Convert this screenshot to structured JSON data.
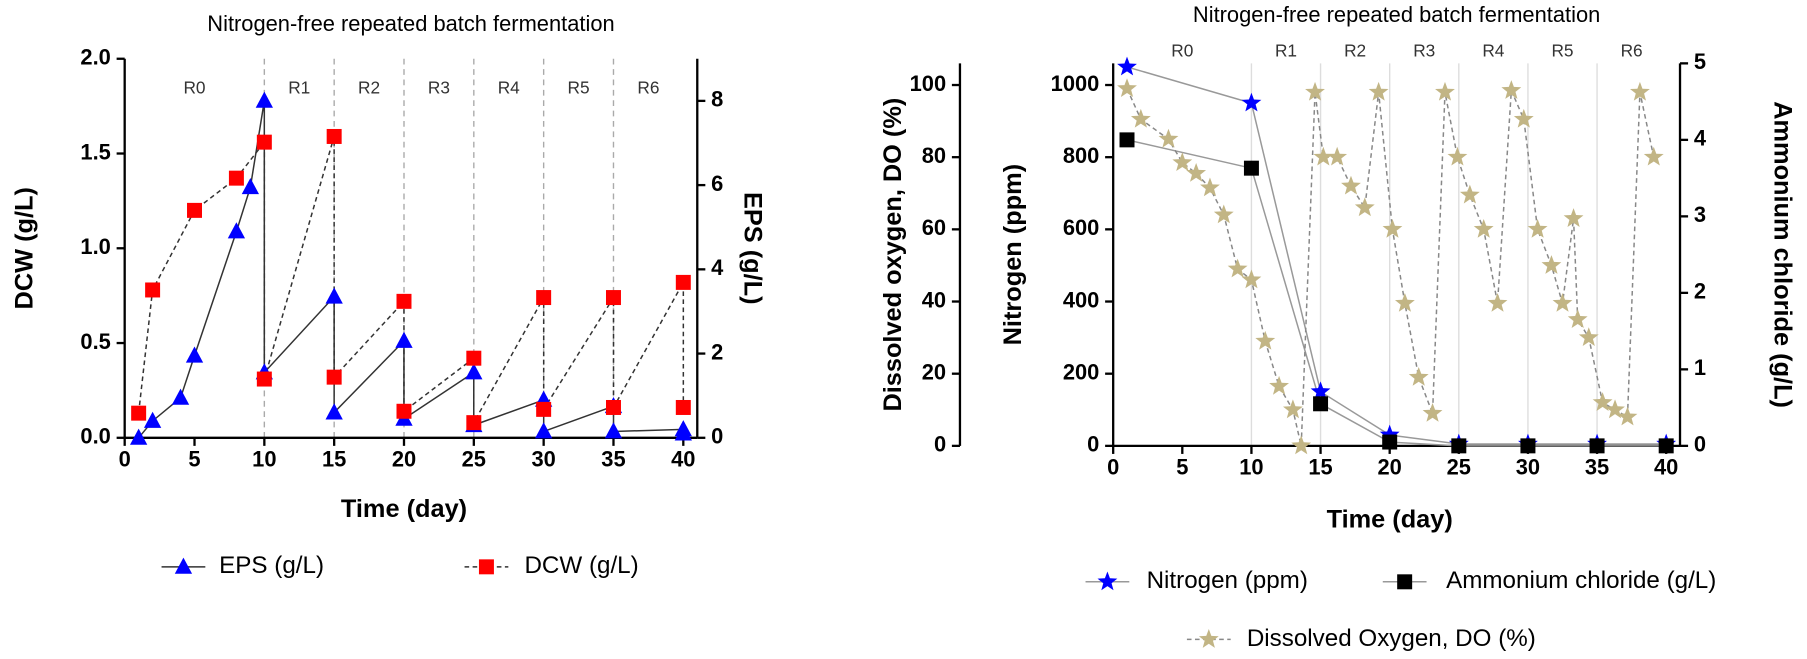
{
  "chart_data": [
    {
      "type": "line",
      "title": "Nitrogen-free repeated batch fermentation",
      "xlabel": "Time (day)",
      "ylabel": "DCW (g/L)",
      "y2label": "EPS (g/L)",
      "xlim": [
        0,
        41
      ],
      "xticks": [
        0,
        5,
        10,
        15,
        20,
        25,
        30,
        35,
        40
      ],
      "ylim": [
        0,
        2
      ],
      "yticks": [
        {
          "value": 0,
          "label": "0.0"
        },
        0.5,
        {
          "value": 1,
          "label": "1.0"
        },
        1.5,
        {
          "value": 2,
          "label": "2.0"
        }
      ],
      "y2lim": [
        0,
        9
      ],
      "y2ticks": [
        0,
        2,
        4,
        6,
        8
      ],
      "phases": [
        "R0",
        "R1",
        "R2",
        "R3",
        "R4",
        "R5",
        "R6"
      ],
      "phase_boundaries": [
        10,
        15,
        20,
        25,
        30,
        35
      ],
      "series": [
        {
          "name": "EPS (g/L)",
          "color": "#0000ff",
          "line_color": "#333333",
          "marker": "triangle",
          "dashed": false,
          "axis": "y2",
          "x": [
            1,
            2,
            4,
            5,
            8,
            9,
            10,
            10,
            15,
            15,
            20,
            20,
            25,
            25,
            30,
            30,
            35,
            35,
            40,
            40
          ],
          "values": [
            0,
            0.4,
            0.95,
            1.95,
            4.9,
            5.95,
            8,
            1.55,
            3.35,
            0.6,
            2.3,
            0.45,
            1.55,
            0.3,
            0.9,
            0.15,
            0.75,
            0.15,
            0.2,
            0.1
          ]
        },
        {
          "name": "DCW (g/L)",
          "color": "#ff0000",
          "line_color": "#333333",
          "marker": "square",
          "dashed": true,
          "axis": "y",
          "x": [
            1,
            2,
            5,
            8,
            10,
            10,
            15,
            15,
            20,
            20,
            25,
            25,
            30,
            30,
            35,
            35,
            40,
            40
          ],
          "values": [
            0.13,
            0.78,
            1.2,
            1.37,
            1.56,
            0.31,
            1.59,
            0.32,
            0.72,
            0.14,
            0.42,
            0.08,
            0.74,
            0.15,
            0.74,
            0.16,
            0.82,
            0.16
          ]
        }
      ]
    },
    {
      "type": "line",
      "title": "Nitrogen-free repeated batch fermentation",
      "xlabel": "Time (day)",
      "ylabel": "Nitrogen (ppm)",
      "y2label": "Ammonium chloride (g/L)",
      "y3label": "Dissolved oxygen, DO (%)",
      "xlim": [
        0,
        41
      ],
      "xticks": [
        0,
        5,
        10,
        15,
        20,
        25,
        30,
        35,
        40
      ],
      "ylim": [
        0,
        1060
      ],
      "yticks": [
        0,
        200,
        400,
        600,
        800,
        1000
      ],
      "y2lim": [
        0,
        5
      ],
      "y2ticks": [
        0,
        1,
        2,
        3,
        4,
        5
      ],
      "y3lim": [
        0,
        106
      ],
      "y3ticks": [
        0,
        20,
        40,
        60,
        80,
        100
      ],
      "phases": [
        "R0",
        "R1",
        "R2",
        "R3",
        "R4",
        "R5",
        "R6"
      ],
      "phase_boundaries": [
        10,
        15,
        20,
        25,
        30,
        35
      ],
      "series": [
        {
          "name": "Nitrogen (ppm)",
          "color": "#0000ff",
          "line_color": "#999999",
          "marker": "star",
          "dashed": false,
          "axis": "y",
          "x": [
            1,
            10,
            15,
            20,
            25,
            30,
            35,
            40
          ],
          "values": [
            1050,
            950,
            150,
            30,
            5,
            5,
            5,
            5
          ]
        },
        {
          "name": "Ammonium chloride (g/L)",
          "color": "#000000",
          "line_color": "#999999",
          "marker": "square",
          "dashed": false,
          "axis": "y2",
          "x": [
            1,
            10,
            15,
            20,
            25,
            30,
            35,
            40
          ],
          "values": [
            4.0,
            3.63,
            0.55,
            0.05,
            0,
            0,
            0,
            0
          ]
        },
        {
          "name": "Dissolved Oxygen, DO (%)",
          "color": "#c2b585",
          "line_color": "#888888",
          "marker": "star",
          "dashed": true,
          "axis": "y3",
          "x": [
            1,
            2,
            4,
            5,
            6,
            7,
            8,
            9,
            10,
            11,
            12,
            13,
            13.6,
            14.6,
            15.2,
            16.2,
            17.2,
            18.2,
            19.2,
            20.2,
            21.1,
            22.1,
            23.1,
            24,
            24.9,
            25.8,
            26.8,
            27.8,
            28.8,
            29.7,
            30.7,
            31.7,
            32.5,
            33.3,
            33.6,
            34.4,
            35.4,
            36.3,
            37.2,
            38.1,
            39.1
          ],
          "values": [
            99,
            90.5,
            85,
            78.5,
            75.5,
            71.5,
            64,
            49,
            46,
            29,
            16.5,
            10,
            0,
            98,
            80,
            80,
            72,
            66,
            98,
            60,
            39.5,
            19,
            9,
            98,
            80,
            69.5,
            60,
            39.5,
            98.5,
            90.5,
            60,
            50,
            39.5,
            63,
            35,
            30,
            12,
            10,
            8,
            98,
            80
          ]
        }
      ]
    }
  ]
}
